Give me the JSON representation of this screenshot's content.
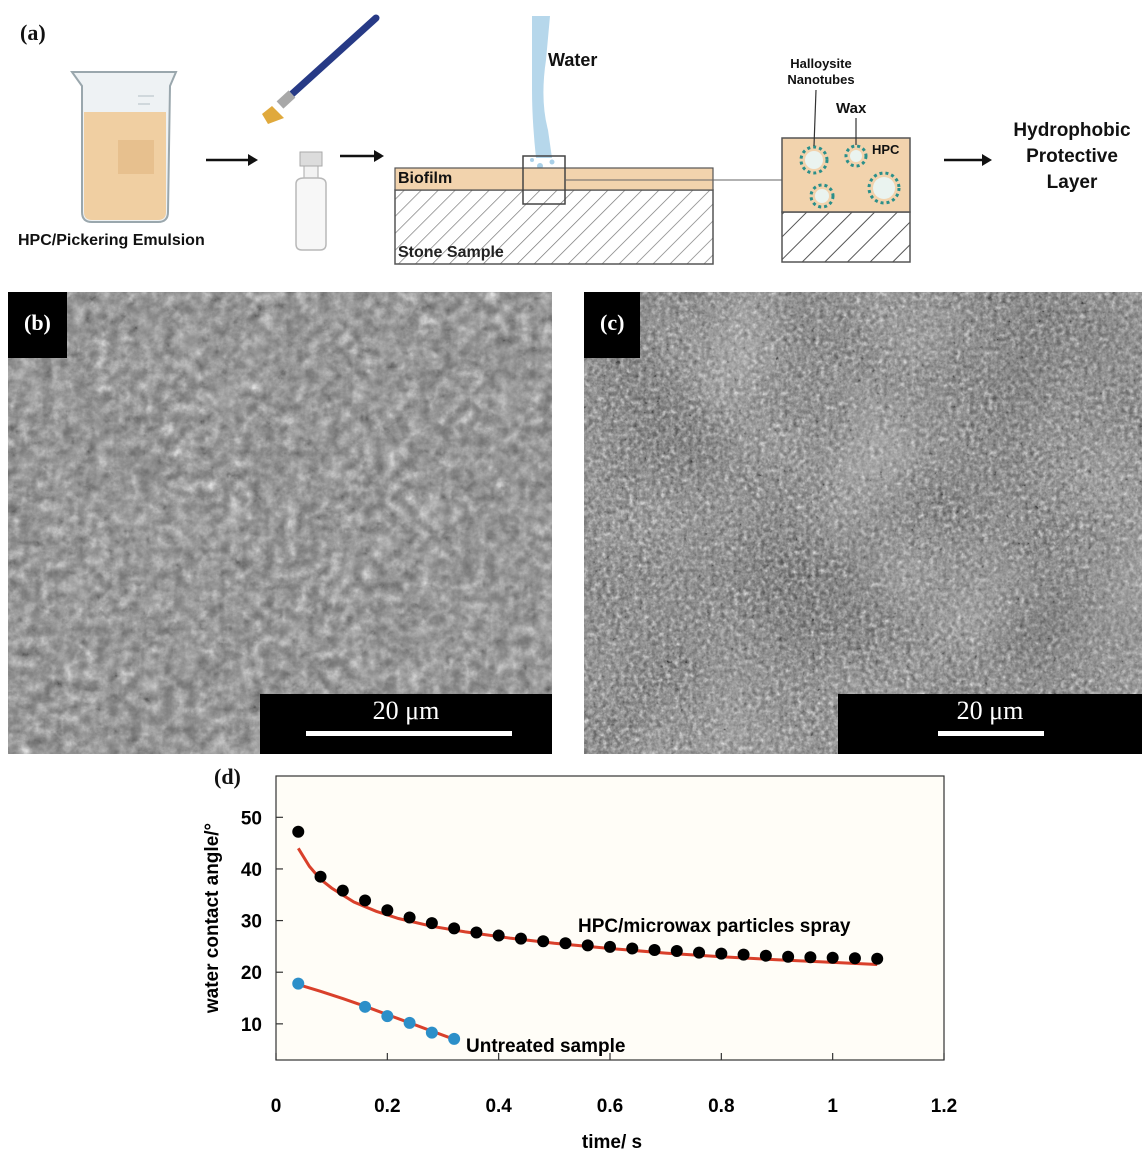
{
  "panels": {
    "a": {
      "letter": "(a)",
      "beaker_label": "HPC/Pickering Emulsion",
      "water_label": "Water",
      "biofilm_label": "Biofilm",
      "stone_label": "Stone Sample",
      "halloysite_label_1": "Halloysite",
      "halloysite_label_2": "Nanotubes",
      "wax_label": "Wax",
      "hpc_label": "HPC",
      "result_line_1": "Hydrophobic",
      "result_line_2": "Protective",
      "result_line_3": "Layer"
    },
    "b": {
      "letter": "(b)",
      "scale": "20 μm"
    },
    "c": {
      "letter": "(c)",
      "scale": "20 μm"
    },
    "d": {
      "letter": "(d)"
    }
  },
  "chart_data": {
    "type": "scatter",
    "xlabel": "time/ s",
    "ylabel": "water contact angle/°",
    "xlim": [
      0,
      1.2
    ],
    "ylim": [
      3,
      58
    ],
    "xticks": [
      "0",
      "0.2",
      "0.4",
      "0.6",
      "0.8",
      "1",
      "1.2"
    ],
    "xtick_values": [
      0,
      0.2,
      0.4,
      0.6,
      0.8,
      1.0,
      1.2
    ],
    "yticks": [
      "10",
      "20",
      "30",
      "40",
      "50"
    ],
    "ytick_values": [
      10,
      20,
      30,
      40,
      50
    ],
    "series": [
      {
        "name": "HPC/microwax particles spray",
        "marker_color": "#000000",
        "fit_color": "#d9402b",
        "x": [
          0.04,
          0.08,
          0.12,
          0.16,
          0.2,
          0.24,
          0.28,
          0.32,
          0.36,
          0.4,
          0.44,
          0.48,
          0.52,
          0.56,
          0.6,
          0.64,
          0.68,
          0.72,
          0.76,
          0.8,
          0.84,
          0.88,
          0.92,
          0.96,
          1.0,
          1.04,
          1.08
        ],
        "y": [
          47.2,
          38.5,
          35.8,
          33.9,
          32.0,
          30.6,
          29.5,
          28.5,
          27.7,
          27.1,
          26.5,
          26.0,
          25.6,
          25.2,
          24.9,
          24.6,
          24.3,
          24.1,
          23.8,
          23.6,
          23.4,
          23.2,
          23.0,
          22.9,
          22.8,
          22.7,
          22.6
        ],
        "fit_x": [
          0.04,
          0.06,
          0.08,
          0.1,
          0.14,
          0.18,
          0.22,
          0.28,
          0.34,
          0.42,
          0.5,
          0.6,
          0.7,
          0.8,
          0.9,
          1.0,
          1.08
        ],
        "fit_y": [
          44.0,
          40.5,
          38.0,
          36.3,
          33.6,
          31.8,
          30.4,
          28.9,
          27.8,
          26.6,
          25.6,
          24.6,
          23.7,
          23.0,
          22.4,
          21.9,
          21.5
        ]
      },
      {
        "name": "Untreated sample",
        "marker_color": "#2c8fc9",
        "fit_color": "#d9402b",
        "x": [
          0.04,
          0.16,
          0.2,
          0.24,
          0.28,
          0.32
        ],
        "y": [
          17.8,
          13.3,
          11.5,
          10.2,
          8.3,
          7.1
        ],
        "fit_x": [
          0.04,
          0.08,
          0.12,
          0.16,
          0.2,
          0.24,
          0.28,
          0.32
        ],
        "fit_y": [
          17.6,
          16.3,
          14.9,
          13.4,
          11.8,
          10.2,
          8.6,
          7.0
        ]
      }
    ]
  }
}
